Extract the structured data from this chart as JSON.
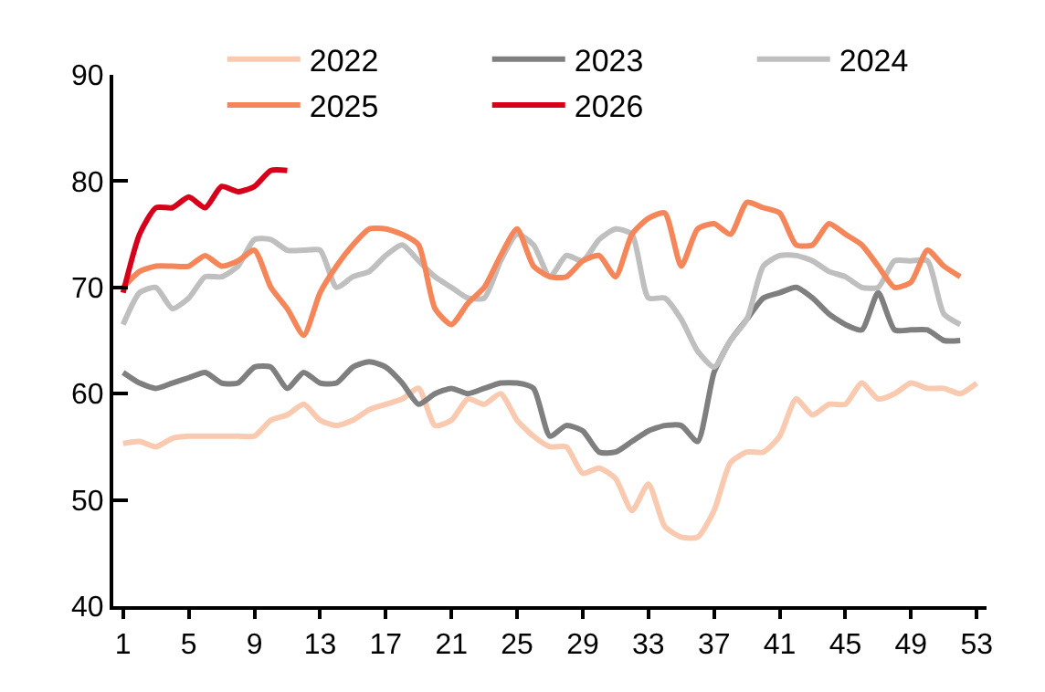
{
  "chart_data": {
    "type": "line",
    "x": [
      1,
      2,
      3,
      4,
      5,
      6,
      7,
      8,
      9,
      10,
      11,
      12,
      13,
      14,
      15,
      16,
      17,
      18,
      19,
      20,
      21,
      22,
      23,
      24,
      25,
      26,
      27,
      28,
      29,
      30,
      31,
      32,
      33,
      34,
      35,
      36,
      37,
      38,
      39,
      40,
      41,
      42,
      43,
      44,
      45,
      46,
      47,
      48,
      49,
      50,
      51,
      52,
      53
    ],
    "series": [
      {
        "name": "2022",
        "color": "#f9c9b0",
        "values": [
          55.3,
          55.5,
          55,
          55.8,
          56,
          56,
          56,
          56,
          56,
          57.5,
          58,
          59,
          57.5,
          57,
          57.5,
          58.5,
          59,
          59.5,
          60.5,
          57,
          57.5,
          59.5,
          59,
          60,
          57.5,
          56,
          55,
          55,
          52.5,
          53,
          52,
          49,
          51.5,
          47.5,
          46.5,
          46.5,
          49,
          53.5,
          54.5,
          54.5,
          56,
          59.5,
          58,
          59,
          59,
          61,
          59.5,
          60,
          61,
          60.5,
          60.5,
          60,
          61
        ]
      },
      {
        "name": "2023",
        "color": "#7f7f7f",
        "values": [
          62,
          61,
          60.5,
          61,
          61.5,
          62,
          61,
          61,
          62.5,
          62.5,
          60.5,
          62,
          61,
          61,
          62.5,
          63,
          62.5,
          61,
          59,
          60,
          60.5,
          60,
          60.5,
          61,
          61,
          60.5,
          56,
          57,
          56.5,
          54.5,
          54.5,
          55.5,
          56.5,
          57,
          57,
          55.5,
          62,
          65,
          67,
          69,
          69.5,
          70,
          69,
          67.5,
          66.5,
          66,
          69.5,
          66,
          66,
          66,
          65,
          65,
          null
        ]
      },
      {
        "name": "2024",
        "color": "#bfbfbf",
        "values": [
          66.5,
          69.5,
          70,
          68,
          69,
          71,
          71,
          72,
          74.5,
          74.5,
          73.5,
          73.5,
          73.5,
          70,
          71,
          71.5,
          73,
          74,
          72.5,
          71,
          70,
          69,
          69,
          72.5,
          75,
          74,
          71,
          73,
          72.5,
          74.5,
          75.5,
          75,
          69,
          69,
          67,
          64,
          62.5,
          65,
          67,
          72,
          73,
          73,
          72.5,
          71.5,
          71,
          70,
          70,
          72.5,
          72.5,
          72.5,
          67.5,
          66.5,
          null
        ]
      },
      {
        "name": "2025",
        "color": "#f4865a",
        "values": [
          70,
          71.5,
          72,
          72,
          72,
          73,
          72,
          72.5,
          73.5,
          70,
          68,
          65.5,
          69.5,
          72,
          74,
          75.5,
          75.5,
          75,
          74,
          68,
          66.5,
          68.5,
          70,
          73,
          75.5,
          72,
          71,
          71,
          72.5,
          73,
          71,
          75,
          76.5,
          77,
          72,
          75.5,
          76,
          75,
          78,
          77.5,
          77,
          74,
          74,
          76,
          75,
          74,
          72,
          70,
          70.5,
          73.5,
          72,
          71,
          null
        ]
      },
      {
        "name": "2026",
        "color": "#d7001a",
        "values": [
          69.5,
          75,
          77.5,
          77.5,
          78.5,
          77.5,
          79.5,
          79,
          79.5,
          81,
          81,
          null,
          null,
          null,
          null,
          null,
          null,
          null,
          null,
          null,
          null,
          null,
          null,
          null,
          null,
          null,
          null,
          null,
          null,
          null,
          null,
          null,
          null,
          null,
          null,
          null,
          null,
          null,
          null,
          null,
          null,
          null,
          null,
          null,
          null,
          null,
          null,
          null,
          null,
          null,
          null,
          null,
          null
        ]
      }
    ],
    "xlim": [
      0.4,
      53.6
    ],
    "xticks": [
      1,
      5,
      9,
      13,
      17,
      21,
      25,
      29,
      33,
      37,
      41,
      45,
      49,
      53
    ],
    "ylim": [
      40,
      90
    ],
    "yticks": [
      40,
      50,
      60,
      70,
      80,
      90
    ],
    "legend": "top",
    "grid": false,
    "marker": "none",
    "line_style": "solid"
  }
}
